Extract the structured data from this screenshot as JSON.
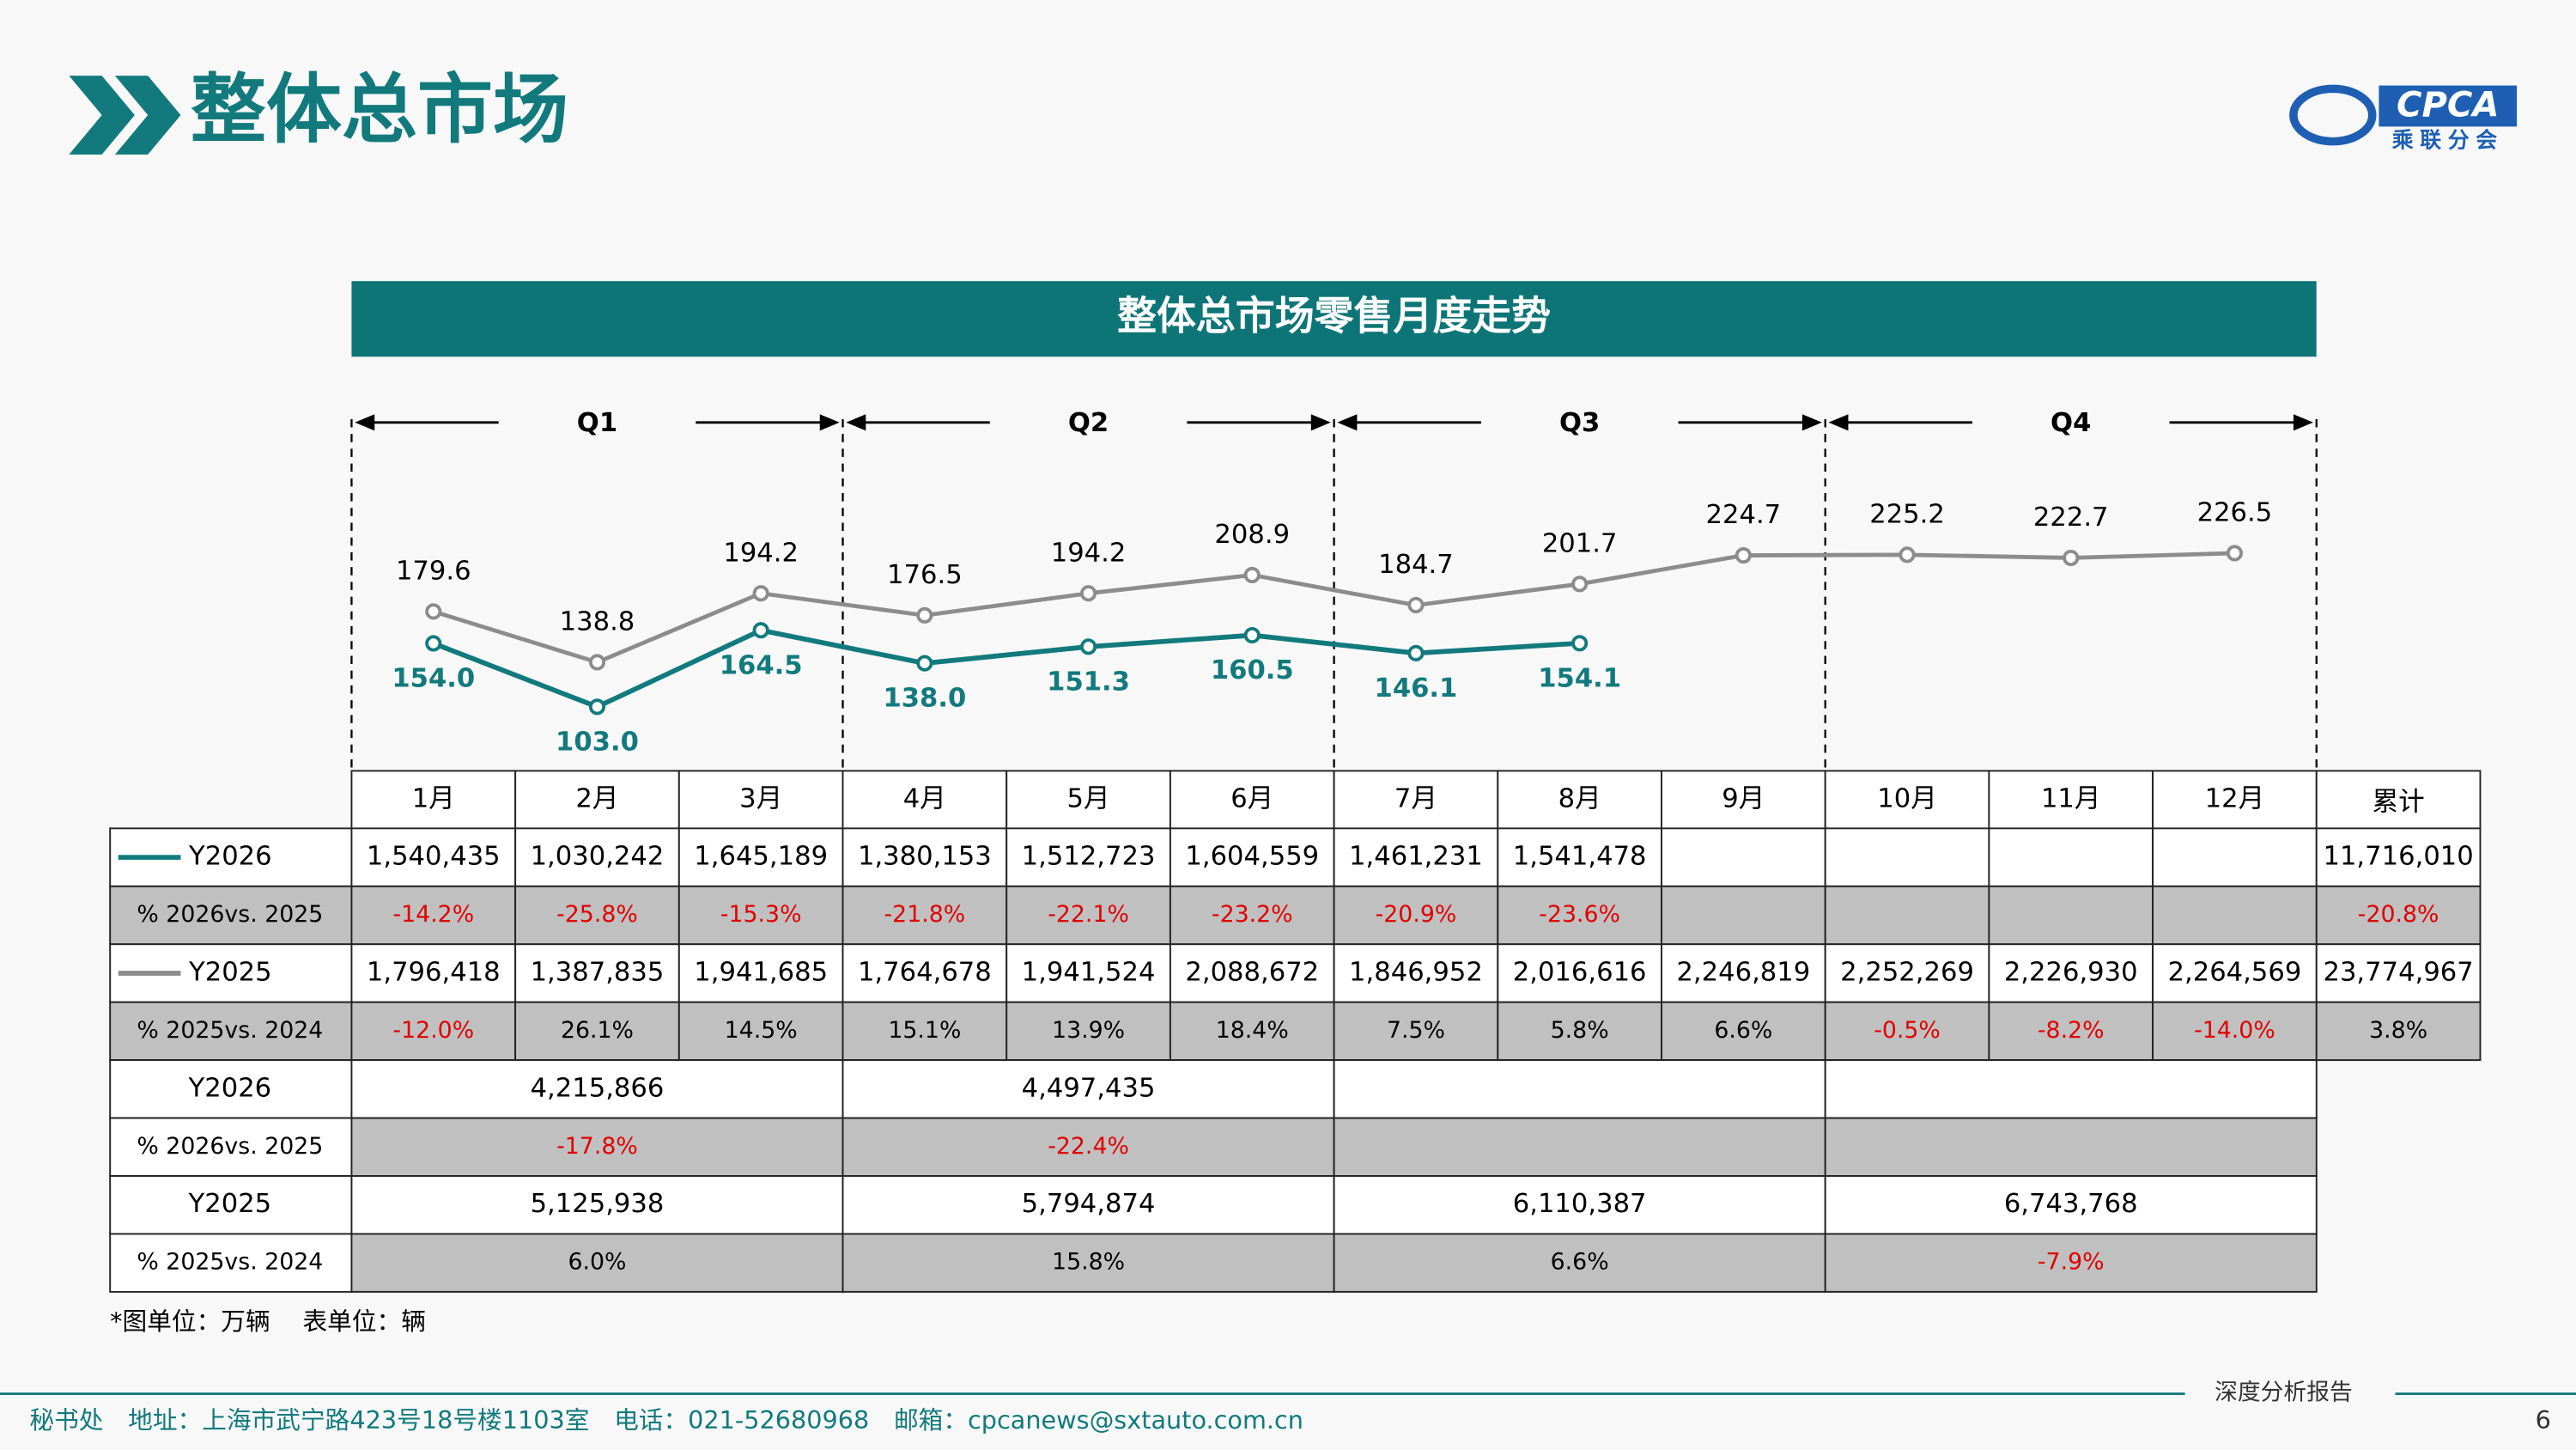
{
  "header": {
    "title": "整体总市场",
    "logo_text": "CPCA",
    "logo_sub": "乘联分会"
  },
  "chart_data": {
    "type": "line",
    "title": "整体总市场零售月度走势",
    "quarters": [
      "Q1",
      "Q2",
      "Q3",
      "Q4"
    ],
    "categories": [
      "1月",
      "2月",
      "3月",
      "4月",
      "5月",
      "6月",
      "7月",
      "8月",
      "9月",
      "10月",
      "11月",
      "12月"
    ],
    "series": [
      {
        "name": "Y2026",
        "color": "#127a7d",
        "values": [
          154.0,
          103.0,
          164.5,
          138.0,
          151.3,
          160.5,
          146.1,
          154.1,
          null,
          null,
          null,
          null
        ],
        "value_labels": [
          "154.0",
          "103.0",
          "164.5",
          "138.0",
          "151.3",
          "160.5",
          "146.1",
          "154.1",
          null,
          null,
          null,
          null
        ]
      },
      {
        "name": "Y2025",
        "color": "#8c8c8c",
        "values": [
          179.6,
          138.8,
          194.2,
          176.5,
          194.2,
          208.9,
          184.7,
          201.7,
          224.7,
          225.2,
          222.7,
          226.5
        ]
      }
    ]
  },
  "table": {
    "total_header": "累计",
    "monthly": [
      {
        "cells": [
          "1,540,435",
          "1,030,242",
          "1,645,189",
          "1,380,153",
          "1,512,723",
          "1,604,559",
          "1,461,231",
          "1,541,478",
          null,
          null,
          null,
          null,
          "11,716,010"
        ]
      },
      {
        "label": "% 2026vs. 2025",
        "cells": [
          "-14.2%",
          "-25.8%",
          "-15.3%",
          "-21.8%",
          "-22.1%",
          "-23.2%",
          "-20.9%",
          "-23.6%",
          null,
          null,
          null,
          null,
          "-20.8%"
        ]
      },
      {
        "cells": [
          "1,796,418",
          "1,387,835",
          "1,941,685",
          "1,764,678",
          "1,941,524",
          "2,088,672",
          "1,846,952",
          "2,016,616",
          "2,246,819",
          "2,252,269",
          "2,226,930",
          "2,264,569",
          "23,774,967"
        ]
      },
      {
        "label": "% 2025vs. 2024",
        "cells": [
          "-12.0%",
          "26.1%",
          "14.5%",
          "15.1%",
          "13.9%",
          "18.4%",
          "7.5%",
          "5.8%",
          "6.6%",
          "-0.5%",
          "-8.2%",
          "-14.0%",
          "3.8%"
        ]
      }
    ],
    "quarterly": [
      {
        "label": "Y2026",
        "cells": [
          "4,215,866",
          "4,497,435",
          null,
          null
        ]
      },
      {
        "label": "% 2026vs. 2025",
        "cells": [
          "-17.8%",
          "-22.4%",
          null,
          null
        ]
      },
      {
        "label": "Y2025",
        "cells": [
          "5,125,938",
          "5,794,874",
          "6,110,387",
          "6,743,768"
        ]
      },
      {
        "label": "% 2025vs. 2024",
        "cells": [
          "6.0%",
          "15.8%",
          "6.6%",
          "-7.9%"
        ]
      }
    ]
  },
  "footnote": "*图单位：万辆　 表单位：辆",
  "footer": {
    "contact": "秘书处　地址：上海市武宁路423号18号楼1103室　电话：021-52680968　邮箱：cpcanews@sxtauto.com.cn",
    "report": "深度分析报告",
    "page": "6"
  }
}
